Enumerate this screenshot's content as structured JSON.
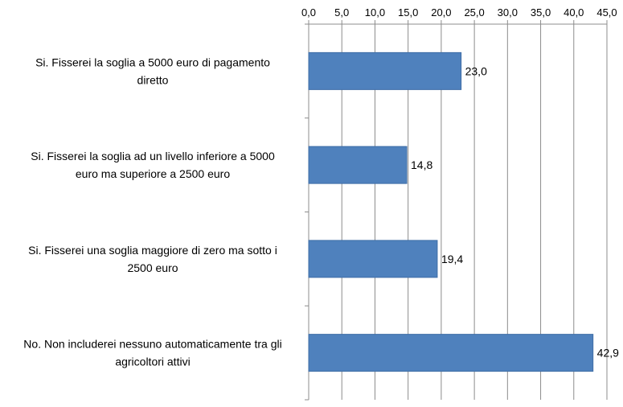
{
  "chart_data": {
    "type": "bar",
    "orientation": "horizontal",
    "title": "",
    "xlabel": "",
    "ylabel": "",
    "xlim": [
      0,
      45
    ],
    "ticks": [
      "0,0",
      "5,0",
      "10,0",
      "15,0",
      "20,0",
      "25,0",
      "30,0",
      "35,0",
      "40,0",
      "45,0"
    ],
    "x_axis_position": "top",
    "grid": true,
    "legend": "none",
    "bar_color": "#4F81BD",
    "categories": [
      [
        "Si. Fisserei la soglia a 5000 euro di pagamento",
        "diretto"
      ],
      [
        "Si. Fisserei la soglia ad un livello inferiore a 5000",
        "euro ma superiore a 2500 euro"
      ],
      [
        "Si. Fisserei una soglia maggiore di zero ma sotto i",
        "2500 euro"
      ],
      [
        "No. Non includerei nessuno automaticamente tra gli",
        "agricoltori attivi"
      ]
    ],
    "values": [
      23.0,
      14.8,
      19.4,
      42.9
    ],
    "data_labels": [
      "23,0",
      "14,8",
      "19,4",
      "42,9"
    ]
  }
}
